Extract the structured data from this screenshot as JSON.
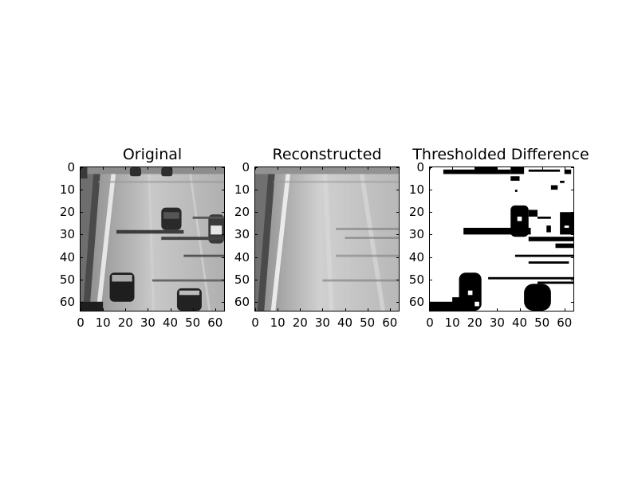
{
  "panels": [
    {
      "id": "original",
      "title": "Original",
      "xticks": [
        "0",
        "10",
        "20",
        "30",
        "40",
        "50",
        "60"
      ],
      "yticks": [
        "0",
        "10",
        "20",
        "30",
        "40",
        "50",
        "60"
      ],
      "colormap": "grayscale"
    },
    {
      "id": "reconstructed",
      "title": "Reconstructed",
      "xticks": [
        "0",
        "10",
        "20",
        "30",
        "40",
        "50",
        "60"
      ],
      "yticks": [
        "0",
        "10",
        "20",
        "30",
        "40",
        "50",
        "60"
      ],
      "colormap": "grayscale"
    },
    {
      "id": "difference",
      "title": "Thresholded Difference",
      "xticks": [
        "0",
        "10",
        "20",
        "30",
        "40",
        "50",
        "60"
      ],
      "yticks": [
        "0",
        "10",
        "20",
        "30",
        "40",
        "50",
        "60"
      ],
      "colormap": "binary"
    }
  ]
}
